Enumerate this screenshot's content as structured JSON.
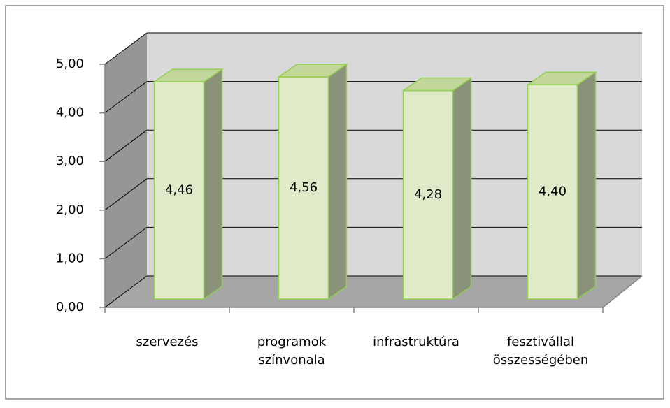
{
  "chart_data": {
    "type": "bar3d",
    "categories": [
      "szervezés",
      "programok színvonala",
      "infrastruktúra",
      "fesztivállal összességében"
    ],
    "values": [
      4.46,
      4.56,
      4.28,
      4.4
    ],
    "value_labels": [
      "4,46",
      "4,56",
      "4,28",
      "4,40"
    ],
    "color": "#e0eac8",
    "ylim": [
      0,
      5
    ],
    "yticks": [
      {
        "value": 0,
        "label": "0,00"
      },
      {
        "value": 1,
        "label": "1,00"
      },
      {
        "value": 2,
        "label": "2,00"
      },
      {
        "value": 3,
        "label": "3,00"
      },
      {
        "value": 4,
        "label": "4,00"
      },
      {
        "value": 5,
        "label": "5,00"
      }
    ],
    "grid": true
  }
}
